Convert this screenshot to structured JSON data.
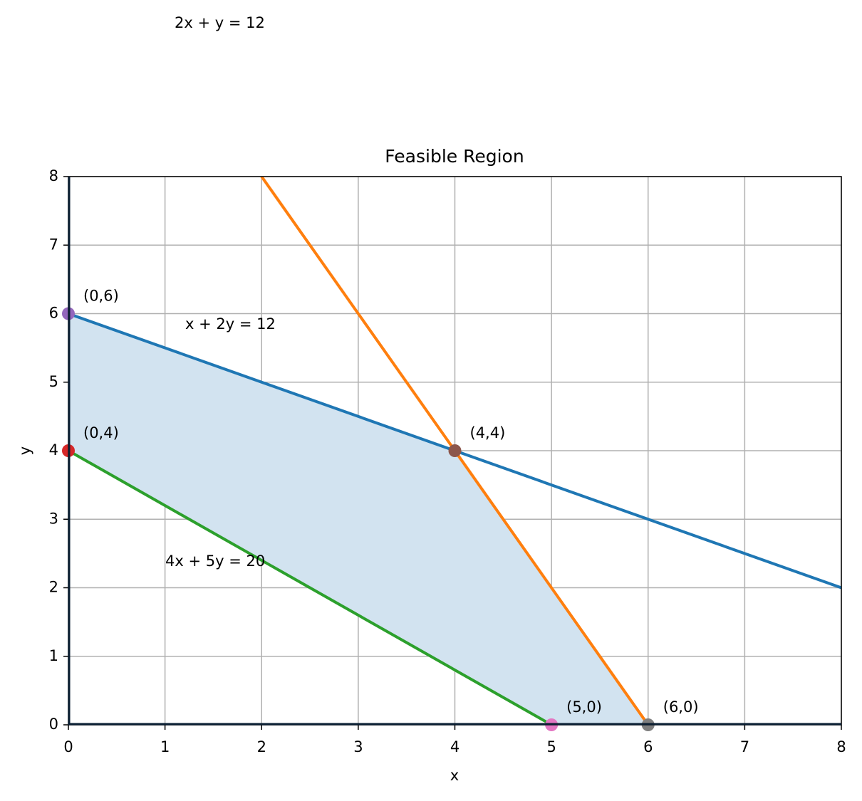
{
  "chart_data": {
    "type": "line",
    "title": "Feasible Region",
    "x_label": "x",
    "y_label": "y",
    "xlim": [
      0,
      8
    ],
    "ylim": [
      0,
      8
    ],
    "xticks": [
      0,
      1,
      2,
      3,
      4,
      5,
      6,
      7,
      8
    ],
    "yticks": [
      0,
      1,
      2,
      3,
      4,
      5,
      6,
      7,
      8
    ],
    "grid": true,
    "series": [
      {
        "name": "x + 2y = 12",
        "color": "#1f77b4",
        "x": [
          0,
          8
        ],
        "values": [
          6,
          2
        ]
      },
      {
        "name": "2x + y = 12",
        "color": "#ff7f0e",
        "x": [
          2,
          6
        ],
        "values": [
          8,
          0
        ]
      },
      {
        "name": "4x + 5y = 20",
        "color": "#2ca02c",
        "x": [
          0,
          5
        ],
        "values": [
          4,
          0
        ]
      }
    ],
    "feasible_region": {
      "color": "#d2e3f0",
      "x": [
        0,
        4,
        6,
        5,
        0
      ],
      "y": [
        6,
        4,
        0,
        0,
        4
      ]
    },
    "points": {
      "x": [
        0,
        0,
        4,
        5,
        6
      ],
      "values": [
        6,
        4,
        4,
        0,
        0
      ],
      "labels": [
        "(0,6)",
        "(0,4)",
        "(4,4)",
        "(5,0)",
        "(6,0)"
      ],
      "colors": [
        "#9467bd",
        "#d62728",
        "#8c564b",
        "#e377c2",
        "#7f7f7f"
      ]
    }
  }
}
